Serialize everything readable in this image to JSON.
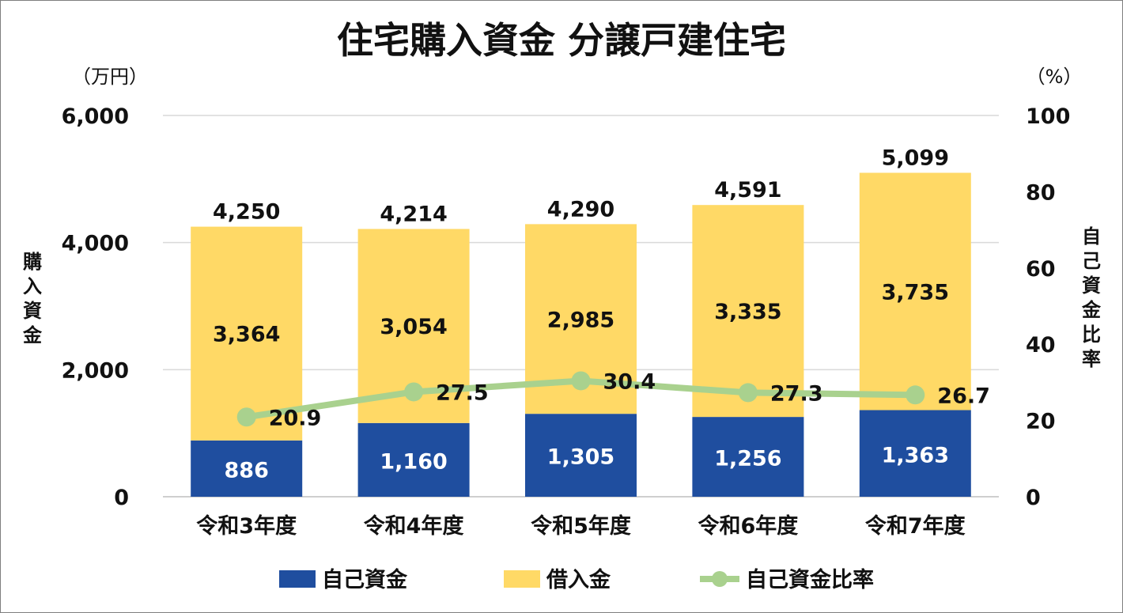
{
  "chart_data": {
    "type": "bar",
    "title": "住宅購入資金 分譲戸建住宅",
    "left_unit": "（万円）",
    "right_unit": "（%）",
    "ylabel": "購入資金",
    "y2label": "自己資金比率",
    "ylim": [
      0,
      6000
    ],
    "y_ticks": [
      "0",
      "2,000",
      "4,000",
      "6,000"
    ],
    "y_tick_values": [
      0,
      2000,
      4000,
      6000
    ],
    "y2lim": [
      0,
      100
    ],
    "y2_ticks": [
      "0",
      "20",
      "40",
      "60",
      "80",
      "100"
    ],
    "y2_tick_values": [
      0,
      20,
      40,
      60,
      80,
      100
    ],
    "grid": true,
    "legend_position": "bottom",
    "categories": [
      "令和3年度",
      "令和4年度",
      "令和5年度",
      "令和6年度",
      "令和7年度"
    ],
    "series": [
      {
        "name": "自己資金",
        "type": "bar",
        "color": "#1f4e9f",
        "values": [
          886,
          1160,
          1305,
          1256,
          1363
        ],
        "labels": [
          "886",
          "1,160",
          "1,305",
          "1,256",
          "1,363"
        ]
      },
      {
        "name": "借入金",
        "type": "bar",
        "color": "#ffd966",
        "values": [
          3364,
          3054,
          2985,
          3335,
          3735
        ],
        "labels": [
          "3,364",
          "3,054",
          "2,985",
          "3,335",
          "3,735"
        ]
      },
      {
        "name": "自己資金比率",
        "type": "line",
        "axis": "right",
        "color": "#a9d18e",
        "values": [
          20.9,
          27.5,
          30.4,
          27.3,
          26.7
        ],
        "labels": [
          "20.9",
          "27.5",
          "30.4",
          "27.3",
          "26.7"
        ]
      }
    ],
    "totals": [
      4250,
      4214,
      4290,
      4591,
      5099
    ],
    "total_labels": [
      "4,250",
      "4,214",
      "4,290",
      "4,591",
      "5,099"
    ]
  }
}
